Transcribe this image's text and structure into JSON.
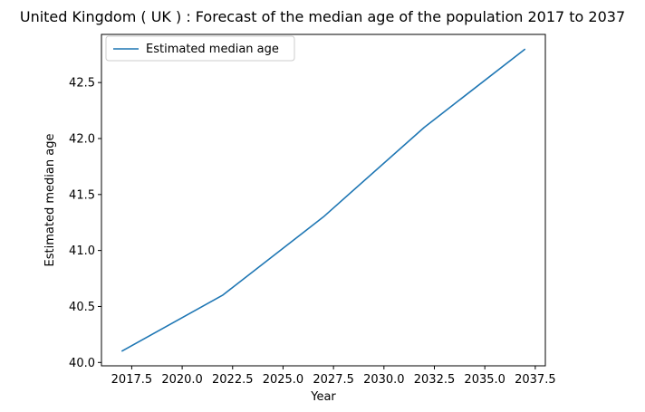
{
  "chart_data": {
    "type": "line",
    "title": "United Kingdom ( UK ) : Forecast of the median age of the population 2017 to 2037",
    "xlabel": "Year",
    "ylabel": "Estimated median age",
    "xlim": [
      2016.0,
      2038.0
    ],
    "ylim": [
      39.97,
      42.93
    ],
    "xticks": [
      2017.5,
      2020.0,
      2022.5,
      2025.0,
      2027.5,
      2030.0,
      2032.5,
      2035.0,
      2037.5
    ],
    "xtick_labels": [
      "2017.5",
      "2020.0",
      "2022.5",
      "2025.0",
      "2027.5",
      "2030.0",
      "2032.5",
      "2035.0",
      "2037.5"
    ],
    "yticks": [
      40.0,
      40.5,
      41.0,
      41.5,
      42.0,
      42.5
    ],
    "ytick_labels": [
      "40.0",
      "40.5",
      "41.0",
      "41.5",
      "42.0",
      "42.5"
    ],
    "grid": false,
    "legend_position": "top-left",
    "series": [
      {
        "name": "Estimated median age",
        "color": "#1f77b4",
        "x": [
          2017,
          2022,
          2027,
          2032,
          2037
        ],
        "y": [
          40.1,
          40.6,
          41.3,
          42.1,
          42.8
        ]
      }
    ]
  }
}
